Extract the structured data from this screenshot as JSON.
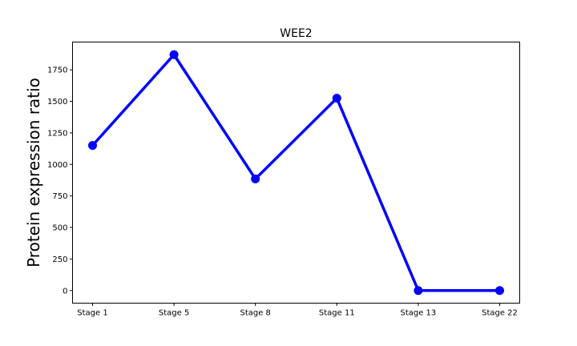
{
  "chart_data": {
    "type": "line",
    "title": "WEE2",
    "xlabel": "",
    "ylabel": "Protein expression ratio",
    "categories": [
      "Stage 1",
      "Stage 5",
      "Stage 8",
      "Stage 11",
      "Stage 13",
      "Stage 22"
    ],
    "series": [
      {
        "values": [
          1150,
          1870,
          885,
          1525,
          0,
          0
        ],
        "color": "#0000ff",
        "marker": "circle"
      }
    ],
    "yticks": [
      0,
      250,
      500,
      750,
      1000,
      1250,
      1500,
      1750
    ],
    "ylim": [
      -100,
      1970
    ],
    "grid": false,
    "legend": false
  }
}
